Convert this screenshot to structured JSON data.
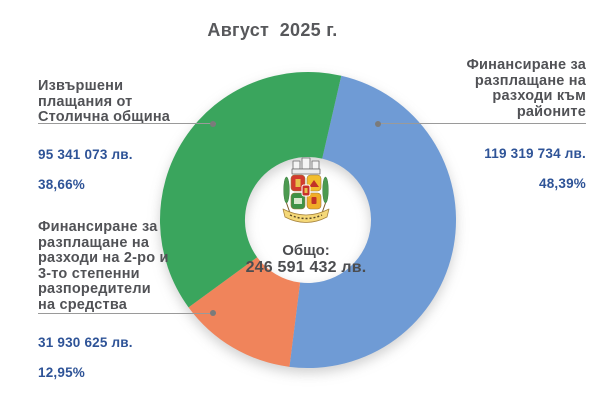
{
  "title": "Август  2025 г.",
  "chart_data": {
    "type": "donut",
    "title": "Август  2025 г.",
    "start_angle_deg": 13,
    "inner_radius_ratio": 0.426,
    "legend_position": "callouts",
    "center": {
      "label": "Общо:",
      "value": "246 591 432 лв."
    },
    "slices": [
      {
        "id": "rayoni",
        "name": "Финансиране за разплащане на разходи към районите",
        "value": 119319734,
        "percent": 48.39,
        "color": "#6f9bd5",
        "callout": {
          "lines": "Финансиране за\nразплащане на\nразходи към\nрайоните",
          "amount": "119 319 734 лв.",
          "percent_label": "48,39%"
        }
      },
      {
        "id": "razporediteli",
        "name": "Финансиране за разплащане на разходи на 2-ро и 3-то степенни разпоредители на средства",
        "value": 31930625,
        "percent": 12.95,
        "color": "#f0845b",
        "callout": {
          "lines": "Финансиране за\nразплащане на\nразходи на 2-ро и\n3-то степенни\nразпоредители\nна средства",
          "amount": "31 930 625 лв.",
          "percent_label": "12,95%"
        }
      },
      {
        "id": "stolichna",
        "name": "Извършени плащания от Столична община",
        "value": 95341073,
        "percent": 38.66,
        "color": "#3aa55d",
        "callout": {
          "lines": "Извършени\nплащания от\nСтолична община",
          "amount": "95 341 073 лв.",
          "percent_label": "38,66%"
        }
      }
    ]
  },
  "center_badge": {
    "label": "Общо:",
    "value": "246 591 432 лв.",
    "emblem": "sofia-coat-of-arms"
  },
  "colors": {
    "blue_slice": "#6f9bd5",
    "orange_slice": "#f0845b",
    "green_slice": "#3aa55d",
    "label_text": "#515256",
    "value_text": "#2e5397",
    "leader_line": "#9a9a9a",
    "title_text": "#57585b"
  }
}
